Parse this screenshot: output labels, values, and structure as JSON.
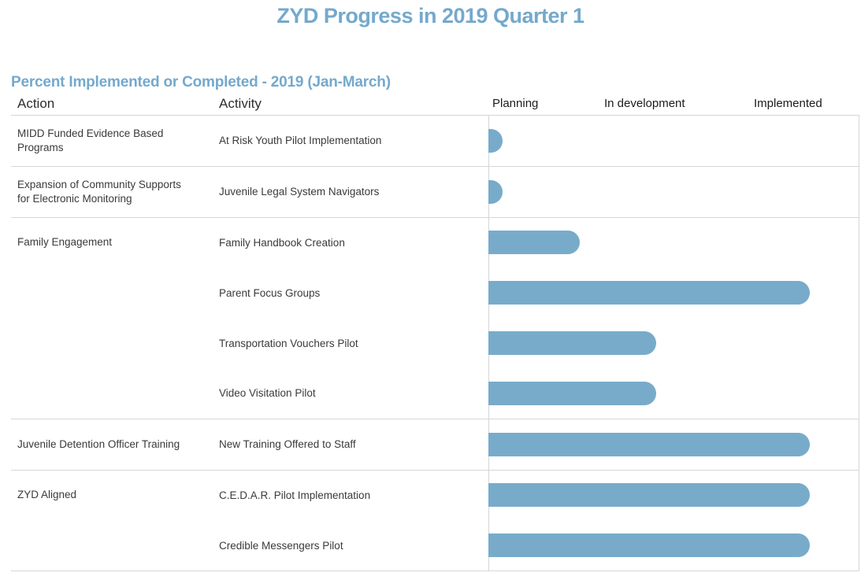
{
  "title": "ZYD Progress in 2019 Quarter 1",
  "subtitle": "Percent Implemented or Completed - 2019 (Jan-March)",
  "columns": {
    "action": "Action",
    "activity": "Activity"
  },
  "axis_headers": [
    "Planning",
    "In development",
    "Implemented"
  ],
  "colors": {
    "heading_blue": "#74a9cc",
    "bar_blue": "#78abca",
    "grid_gray": "#d6d6d6",
    "text_dark": "#3a3a3a"
  },
  "chart_data": {
    "type": "bar",
    "title": "ZYD Progress in 2019 Quarter 1",
    "subtitle": "Percent Implemented or Completed - 2019 (Jan-March)",
    "xlabel": "Percent Implemented or Completed",
    "ylabel": "",
    "xlim": [
      0,
      100
    ],
    "grid": false,
    "legend": "none",
    "stage_labels": [
      "Planning",
      "In development",
      "Implemented"
    ],
    "orientation": "horizontal",
    "groups": [
      {
        "action": "MIDD Funded Evidence Based\nPrograms",
        "activities": [
          {
            "label": "At Risk Youth Pilot Implementation",
            "value": 0
          }
        ]
      },
      {
        "action": "Expansion of Community Supports\nfor Electronic Monitoring",
        "activities": [
          {
            "label": "Juvenile Legal System Navigators",
            "value": 0
          }
        ]
      },
      {
        "action": "Family Engagement",
        "activities": [
          {
            "label": "Family Handbook Creation",
            "value": 25
          },
          {
            "label": "Parent Focus Groups",
            "value": 100
          },
          {
            "label": "Transportation Vouchers Pilot",
            "value": 50
          },
          {
            "label": "Video Visitation Pilot",
            "value": 50
          }
        ]
      },
      {
        "action": "Juvenile Detention Officer Training",
        "activities": [
          {
            "label": "New Training Offered to Staff",
            "value": 100
          }
        ]
      },
      {
        "action": "ZYD Aligned",
        "activities": [
          {
            "label": "C.E.D.A.R. Pilot Implementation",
            "value": 100
          },
          {
            "label": "Credible Messengers Pilot",
            "value": 100
          }
        ]
      }
    ]
  }
}
